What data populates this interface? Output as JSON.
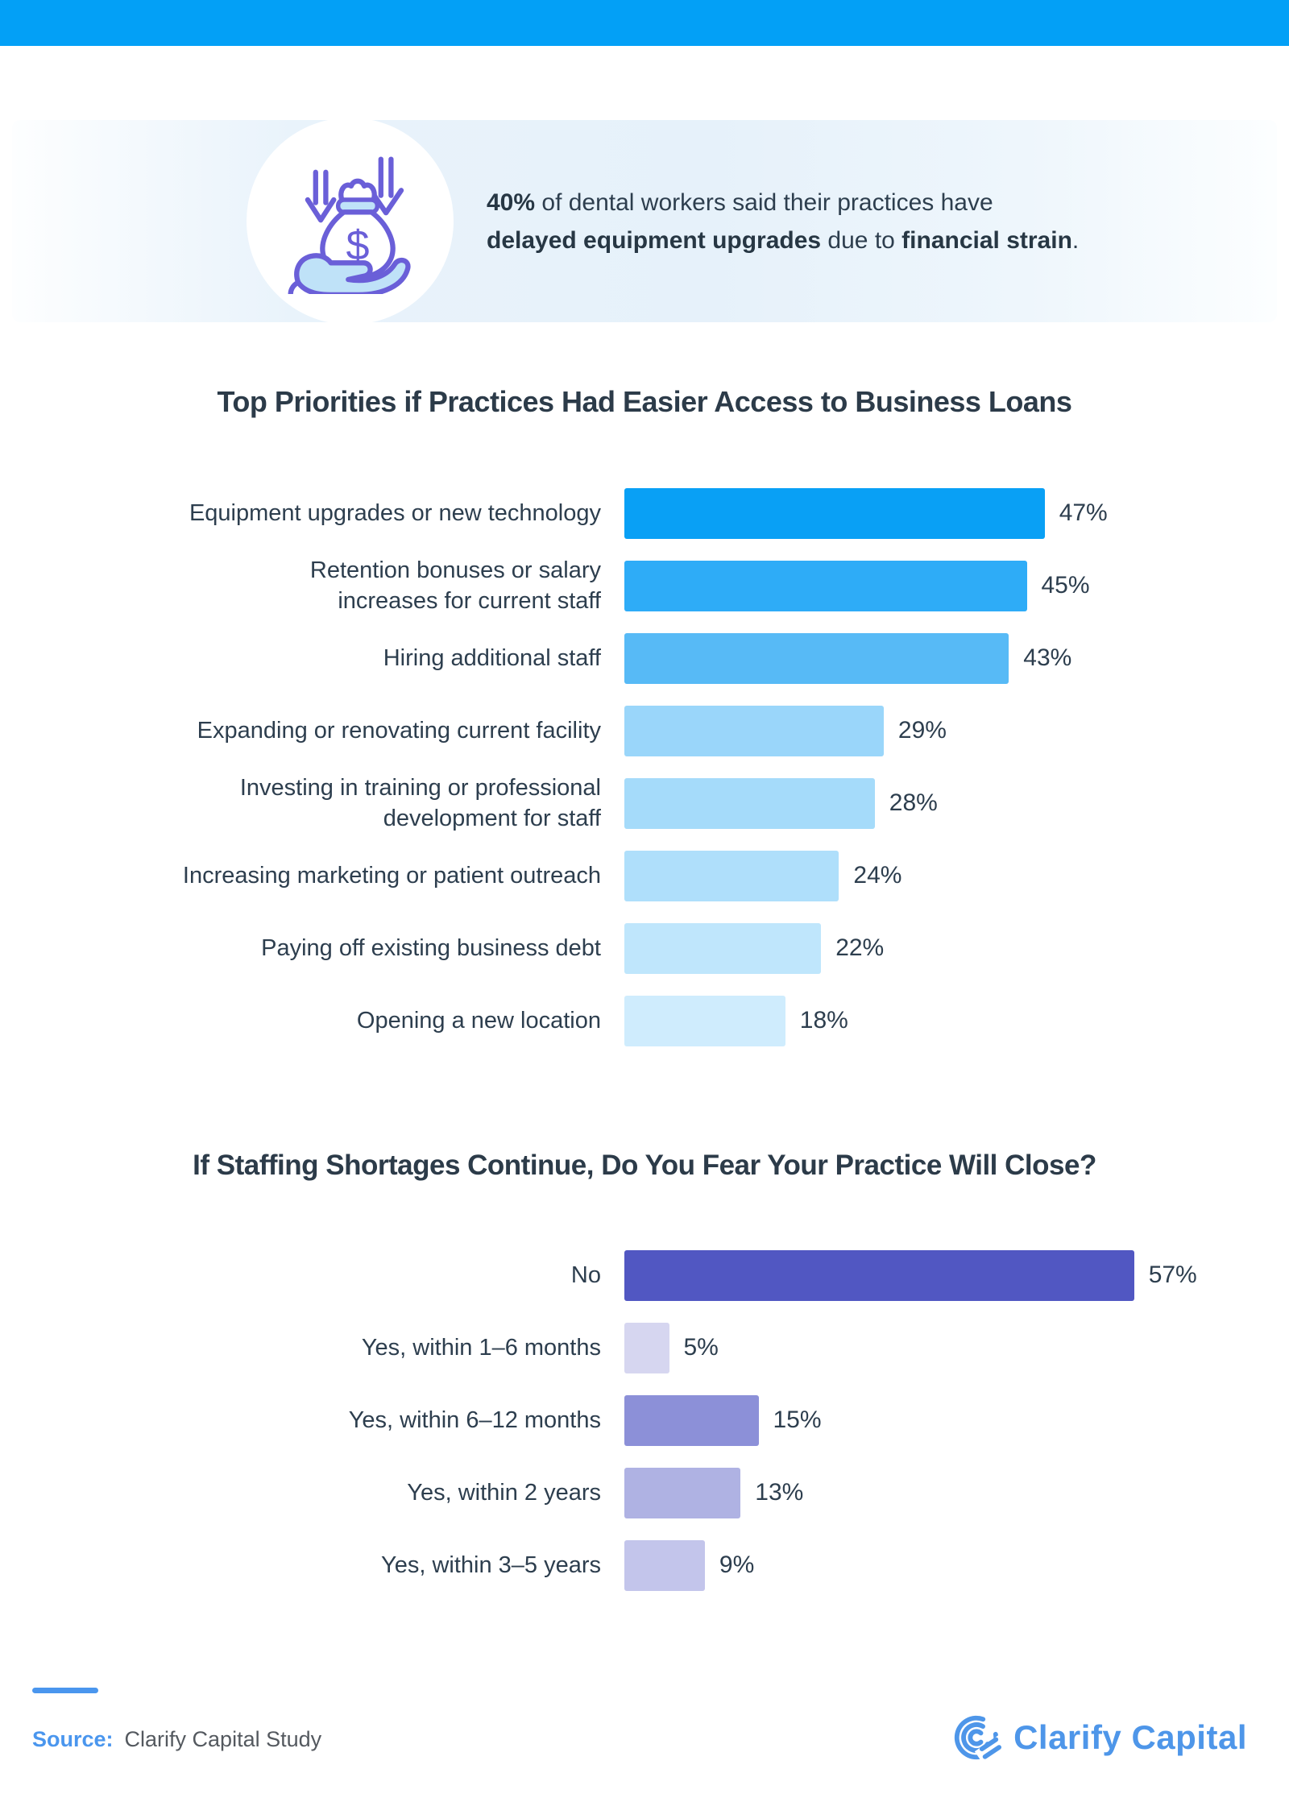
{
  "topbar": {
    "color": "#03a0f6"
  },
  "banner": {
    "icon": "money-bag-in-hand-with-down-arrows-icon",
    "segments": [
      {
        "text": "40%",
        "bold": true
      },
      {
        "text": " of dental workers said their practices have",
        "bold": false
      },
      {
        "text": "\n",
        "bold": false
      },
      {
        "text": "delayed equipment upgrades",
        "bold": true
      },
      {
        "text": " due to ",
        "bold": false
      },
      {
        "text": "financial strain",
        "bold": true
      },
      {
        "text": ".",
        "bold": false
      }
    ]
  },
  "chart_data": [
    {
      "type": "bar",
      "orientation": "horizontal",
      "title": "Top Priorities if Practices Had Easier Access to Business Loans",
      "categories": [
        "Equipment upgrades or new technology",
        "Retention bonuses or salary\nincreases for current staff",
        "Hiring additional staff",
        "Expanding or renovating current facility",
        "Investing in training or professional\ndevelopment for staff",
        "Increasing marketing or patient outreach",
        "Paying off existing business debt",
        "Opening a new location"
      ],
      "values": [
        47,
        45,
        43,
        29,
        28,
        24,
        22,
        18
      ],
      "value_suffix": "%",
      "bar_colors": [
        "#09a0f5",
        "#2eacf7",
        "#57baf6",
        "#9ad6fa",
        "#a5dbfa",
        "#afdffb",
        "#bfe6fc",
        "#cfecfd"
      ],
      "xlim": [
        0,
        100
      ],
      "grid": false,
      "value_labels": "end-of-bar"
    },
    {
      "type": "bar",
      "orientation": "horizontal",
      "title": "If Staffing Shortages Continue, Do You Fear Your Practice Will Close?",
      "categories": [
        "No",
        "Yes, within 1–6 months",
        "Yes, within 6–12 months",
        "Yes, within 2 years",
        "Yes, within 3–5 years"
      ],
      "values": [
        57,
        5,
        15,
        13,
        9
      ],
      "value_suffix": "%",
      "bar_colors": [
        "#5157c2",
        "#d6d6f0",
        "#8c90d8",
        "#afb2e3",
        "#c3c5eb"
      ],
      "xlim": [
        0,
        100
      ],
      "grid": false,
      "value_labels": "end-of-bar"
    }
  ],
  "footer": {
    "source_label": "Source:",
    "source_text": "Clarify Capital Study",
    "logo_text": "Clarify Capital"
  },
  "colors": {
    "topbar_blue": "#03a0f6",
    "text_navy": "#2d3e4e",
    "source_blue": "#4a96ee",
    "source_gray": "#54595f",
    "logo_blue": "#4e96e9",
    "icon_purple": "#6a5fd8",
    "icon_light_blue": "#bfe2f8",
    "banner_bg": "#e6f1fa"
  }
}
